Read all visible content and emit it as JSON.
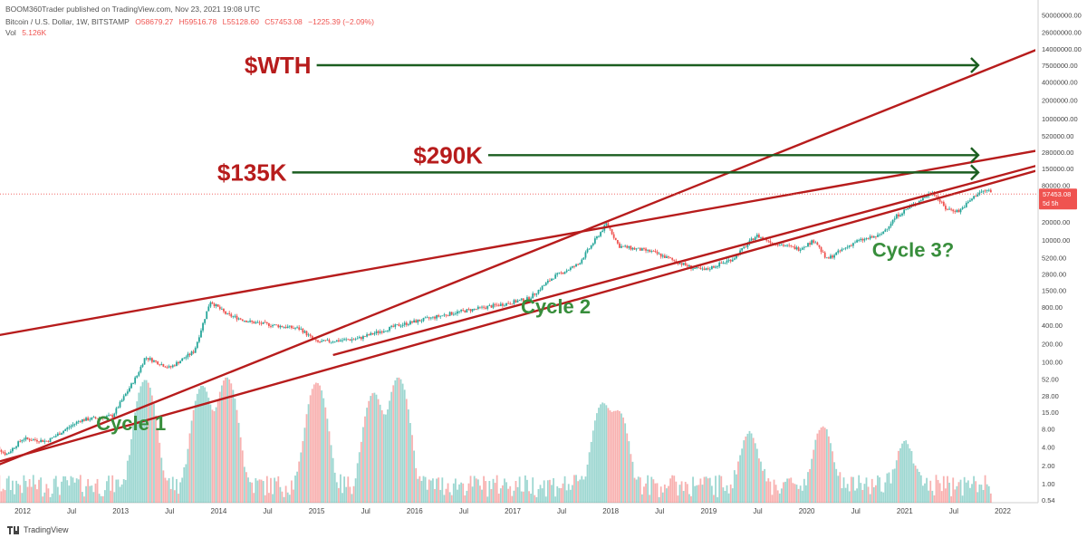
{
  "header": {
    "published": "BOOM360Trader published on TradingView.com, Nov 23, 2021 19:08 UTC",
    "symbol": "Bitcoin / U.S. Dollar, 1W, BITSTAMP",
    "open": "O58679.27",
    "high": "H59516.78",
    "low": "L55128.60",
    "close": "C57453.08",
    "change": "−1225.39 (−2.09%)",
    "volume_label": "Vol",
    "volume_value": "5.126K"
  },
  "brand": {
    "name": "TradingView",
    "icon": "tradingview-logo-icon"
  },
  "colors": {
    "up": "#26a69a",
    "down": "#ef5350",
    "trendline": "#b71c1c",
    "arrow": "#1b5e20",
    "target_text": "#b71c1c",
    "cycle_text": "#388e3c",
    "price_badge": "#ef5350"
  },
  "chart_data": {
    "type": "candlestick",
    "log_scale": true,
    "grid": false,
    "y_tick_labels": [
      "50000000.00",
      "26000000.00",
      "14000000.00",
      "7500000.00",
      "4000000.00",
      "2000000.00",
      "1000000.00",
      "520000.00",
      "280000.00",
      "150000.00",
      "80000.00",
      "20000.00",
      "10000.00",
      "5200.00",
      "2800.00",
      "1500.00",
      "800.00",
      "400.00",
      "200.00",
      "100.00",
      "52.00",
      "28.00",
      "15.00",
      "8.00",
      "4.00",
      "2.00",
      "1.00",
      "0.54"
    ],
    "x_tick_labels": [
      "2012",
      "Jul",
      "2013",
      "Jul",
      "2014",
      "Jul",
      "2015",
      "Jul",
      "2016",
      "Jul",
      "2017",
      "Jul",
      "2018",
      "Jul",
      "2019",
      "Jul",
      "2020",
      "Jul",
      "2021",
      "Jul",
      "2022"
    ],
    "last_price": {
      "value": "57453.08",
      "countdown": "5d 5h"
    },
    "price_anchors": [
      [
        "2011-09",
        5
      ],
      [
        "2011-11",
        3
      ],
      [
        "2012-01",
        5.5
      ],
      [
        "2012-04",
        5
      ],
      [
        "2012-08",
        11
      ],
      [
        "2012-12",
        13
      ],
      [
        "2013-03",
        60
      ],
      [
        "2013-04",
        120
      ],
      [
        "2013-07",
        80
      ],
      [
        "2013-10",
        150
      ],
      [
        "2013-11-30",
        1000
      ],
      [
        "2014-02",
        600
      ],
      [
        "2014-05",
        450
      ],
      [
        "2014-11",
        350
      ],
      [
        "2015-01",
        210
      ],
      [
        "2015-06",
        240
      ],
      [
        "2015-11",
        400
      ],
      [
        "2016-06",
        650
      ],
      [
        "2016-12",
        900
      ],
      [
        "2017-03",
        1100
      ],
      [
        "2017-06",
        2500
      ],
      [
        "2017-09",
        4000
      ],
      [
        "2017-12-17",
        19000
      ],
      [
        "2018-02",
        8000
      ],
      [
        "2018-06",
        6500
      ],
      [
        "2018-11",
        3500
      ],
      [
        "2018-12-15",
        3200
      ],
      [
        "2019-04",
        5000
      ],
      [
        "2019-06-26",
        12000
      ],
      [
        "2019-09",
        9000
      ],
      [
        "2019-12",
        7200
      ],
      [
        "2020-02",
        10000
      ],
      [
        "2020-03-13",
        4800
      ],
      [
        "2020-07",
        9500
      ],
      [
        "2020-10",
        12000
      ],
      [
        "2020-12",
        25000
      ],
      [
        "2021-04-14",
        63000
      ],
      [
        "2021-06",
        33000
      ],
      [
        "2021-07-20",
        30000
      ],
      [
        "2021-10",
        60000
      ],
      [
        "2021-11-09",
        67000
      ],
      [
        "2021-11-23",
        57453
      ]
    ],
    "volume_spikes": [
      [
        "2013-04",
        50
      ],
      [
        "2013-11",
        40
      ],
      [
        "2014-02",
        55
      ],
      [
        "2015-01",
        45
      ],
      [
        "2015-08",
        30
      ],
      [
        "2015-11",
        55
      ],
      [
        "2017-12",
        20
      ],
      [
        "2018-02",
        14
      ],
      [
        "2019-06",
        6
      ],
      [
        "2020-03",
        8
      ],
      [
        "2021-01",
        4
      ]
    ],
    "trendlines": [
      {
        "from": [
          "2011-09",
          260
        ],
        "to": [
          "2022-06",
          310000
        ]
      },
      {
        "from": [
          "2011-09",
          1.8
        ],
        "to": [
          "2022-06",
          15000000
        ]
      },
      {
        "from": [
          "2015-03",
          130
        ],
        "to": [
          "2022-06",
          180000
        ]
      },
      {
        "from": [
          "2011-09",
          2.1
        ],
        "to": [
          "2022-06",
          150000
        ]
      }
    ],
    "targets": [
      {
        "label": "$WTH",
        "value": 7500000,
        "arrow_from": "2015-01",
        "arrow_to": "2021-10"
      },
      {
        "label": "$290K",
        "value": 250000,
        "arrow_from": "2016-10",
        "arrow_to": "2021-10"
      },
      {
        "label": "$135K",
        "value": 130000,
        "arrow_from": "2014-10",
        "arrow_to": "2021-10"
      }
    ],
    "cycles": [
      {
        "label": "Cycle 1",
        "date": "2012-10",
        "price": 10
      },
      {
        "label": "Cycle 2",
        "date": "2017-02",
        "price": 820
      },
      {
        "label": "Cycle 3?",
        "date": "2020-09",
        "price": 7000
      }
    ]
  }
}
